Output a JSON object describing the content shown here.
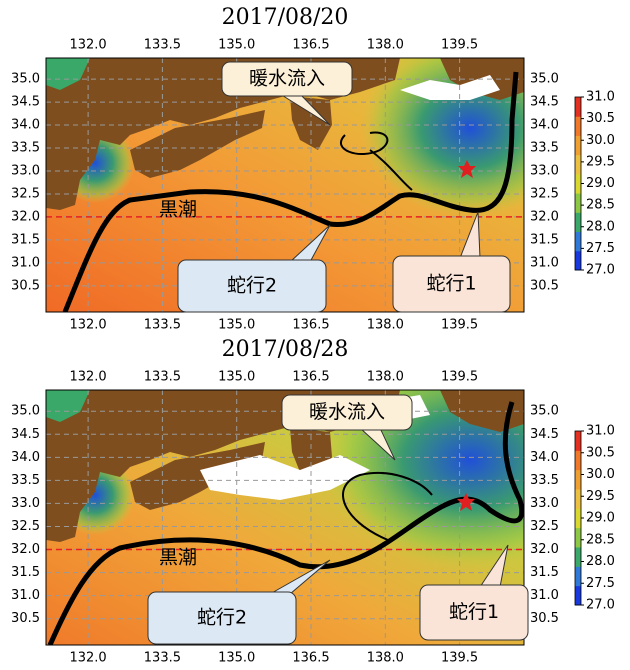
{
  "chart_data": [
    {
      "type": "map",
      "title": "2017/08/20",
      "xlim": [
        131.15,
        140.8
      ],
      "ylim": [
        29.93,
        35.46
      ],
      "xticks": [
        {
          "value": 132,
          "label": "132.0"
        },
        133.5,
        {
          "value": 135,
          "label": "135.0"
        },
        136.5,
        {
          "value": 138,
          "label": "138.0"
        },
        139.5
      ],
      "yticks": [
        30.5,
        {
          "value": 31,
          "label": "31.0"
        },
        31.5,
        {
          "value": 32,
          "label": "32.0"
        },
        32.5,
        {
          "value": 33,
          "label": "33.0"
        },
        33.5,
        {
          "value": 34,
          "label": "34.0"
        },
        34.5,
        {
          "value": 35,
          "label": "35.0"
        }
      ],
      "colorbar": {
        "lim": [
          27,
          31
        ],
        "ticks": [
          {
            "value": 27,
            "label": "27.0"
          },
          27.5,
          {
            "value": 28,
            "label": "28.0"
          },
          28.5,
          {
            "value": 29,
            "label": "29.0"
          },
          29.5,
          {
            "value": 30,
            "label": "30.0"
          },
          30.5,
          {
            "value": 31,
            "label": "31.0"
          }
        ],
        "colors": [
          "#1838e0",
          "#2f7ad8",
          "#3aa868",
          "#8cc844",
          "#d8d830",
          "#ecc040",
          "#f0a030",
          "#f07828",
          "#e43020"
        ]
      },
      "reference_lat": 32,
      "reference_color": "#e82020",
      "annotations": [
        "黒潮",
        "暖水流入",
        "蛇行2",
        "蛇行1"
      ]
    },
    {
      "type": "map",
      "title": "2017/08/28",
      "xlim": [
        131.15,
        140.8
      ],
      "ylim": [
        29.93,
        35.46
      ],
      "xticks": [
        {
          "value": 132,
          "label": "132.0"
        },
        133.5,
        {
          "value": 135,
          "label": "135.0"
        },
        136.5,
        {
          "value": 138,
          "label": "138.0"
        },
        139.5
      ],
      "yticks": [
        30.5,
        {
          "value": 31,
          "label": "31.0"
        },
        31.5,
        {
          "value": 32,
          "label": "32.0"
        },
        32.5,
        {
          "value": 33,
          "label": "33.0"
        },
        33.5,
        {
          "value": 34,
          "label": "34.0"
        },
        34.5,
        {
          "value": 35,
          "label": "35.0"
        }
      ],
      "colorbar": {
        "lim": [
          27,
          31
        ],
        "ticks": [
          {
            "value": 27,
            "label": "27.0"
          },
          27.5,
          {
            "value": 28,
            "label": "28.0"
          },
          28.5,
          {
            "value": 29,
            "label": "29.0"
          },
          29.5,
          {
            "value": 30,
            "label": "30.0"
          },
          30.5,
          {
            "value": 31,
            "label": "31.0"
          }
        ],
        "colors": [
          "#1838e0",
          "#2f7ad8",
          "#3aa868",
          "#8cc844",
          "#d8d830",
          "#ecc040",
          "#f0a030",
          "#f07828",
          "#e43020"
        ]
      },
      "reference_lat": 32,
      "reference_color": "#e82020",
      "annotations": [
        "黒潮",
        "暖水流入",
        "蛇行2",
        "蛇行1"
      ]
    }
  ]
}
